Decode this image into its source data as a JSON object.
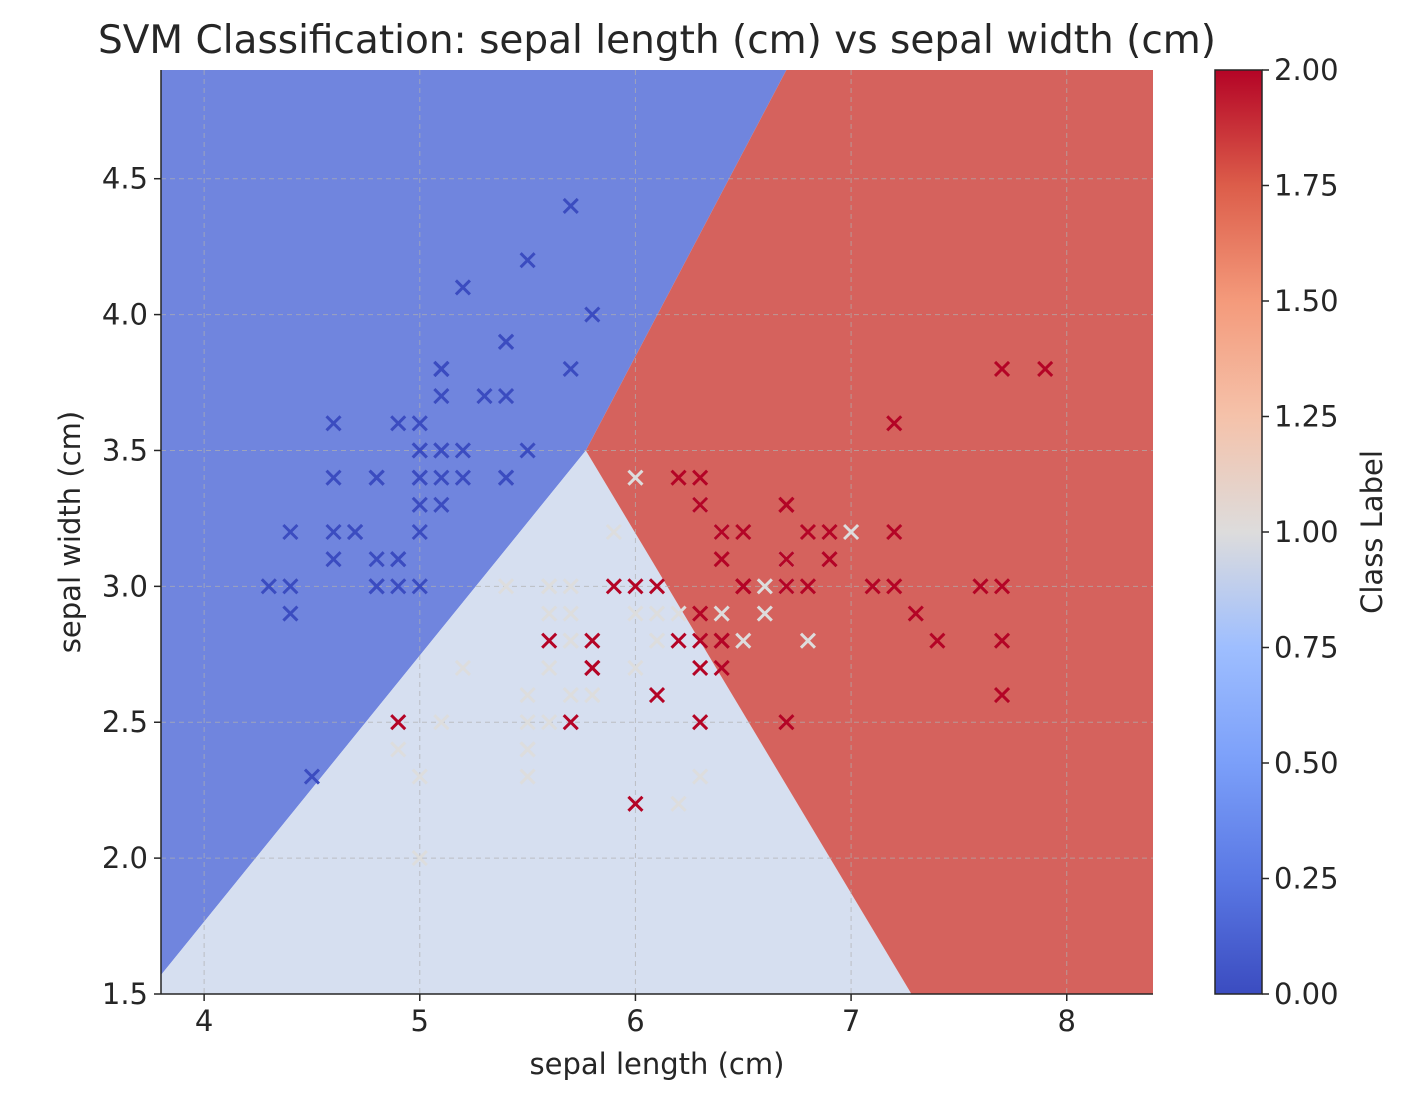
{
  "chart_data": {
    "type": "scatter",
    "title": "SVM Classification: sepal length (cm) vs sepal width (cm)",
    "xlabel": "sepal length (cm)",
    "ylabel": "sepal width (cm)",
    "xlim": [
      3.8,
      8.4
    ],
    "ylim": [
      1.5,
      4.9
    ],
    "xticks": [
      4,
      5,
      6,
      7,
      8
    ],
    "xtick_labels": [
      "4",
      "5",
      "6",
      "7",
      "8"
    ],
    "yticks": [
      1.5,
      2.0,
      2.5,
      3.0,
      3.5,
      4.0,
      4.5
    ],
    "ytick_labels": [
      "1.5",
      "2.0",
      "2.5",
      "3.0",
      "3.5",
      "4.0",
      "4.5"
    ],
    "grid": true,
    "marker": "x",
    "colormap": "coolwarm",
    "regions": [
      {
        "class": 0,
        "color": "#7085de",
        "polygon": [
          [
            3.8,
            1.57
          ],
          [
            5.77,
            3.5
          ],
          [
            6.7,
            4.9
          ],
          [
            3.8,
            4.9
          ]
        ]
      },
      {
        "class": 1,
        "color": "#d6dff0",
        "polygon": [
          [
            3.8,
            1.57
          ],
          [
            5.77,
            3.5
          ],
          [
            7.28,
            1.5
          ],
          [
            3.8,
            1.5
          ]
        ]
      },
      {
        "class": 2,
        "color": "#d5625d",
        "polygon": [
          [
            5.77,
            3.5
          ],
          [
            6.7,
            4.9
          ],
          [
            8.4,
            4.9
          ],
          [
            8.4,
            1.5
          ],
          [
            7.28,
            1.5
          ]
        ]
      }
    ],
    "class_colors": {
      "0": "#3b4cc0",
      "1": "#dddddd",
      "2": "#b40426"
    },
    "series": [
      {
        "class": 0,
        "points": [
          [
            5.1,
            3.5
          ],
          [
            4.9,
            3.0
          ],
          [
            4.7,
            3.2
          ],
          [
            4.6,
            3.1
          ],
          [
            5.0,
            3.6
          ],
          [
            5.4,
            3.9
          ],
          [
            4.6,
            3.4
          ],
          [
            5.0,
            3.4
          ],
          [
            4.4,
            2.9
          ],
          [
            4.9,
            3.1
          ],
          [
            5.4,
            3.7
          ],
          [
            4.8,
            3.4
          ],
          [
            4.8,
            3.0
          ],
          [
            4.3,
            3.0
          ],
          [
            5.8,
            4.0
          ],
          [
            5.7,
            4.4
          ],
          [
            5.4,
            3.9
          ],
          [
            5.1,
            3.5
          ],
          [
            5.7,
            3.8
          ],
          [
            5.1,
            3.8
          ],
          [
            5.4,
            3.4
          ],
          [
            5.1,
            3.7
          ],
          [
            4.6,
            3.6
          ],
          [
            5.1,
            3.3
          ],
          [
            4.8,
            3.4
          ],
          [
            5.0,
            3.0
          ],
          [
            5.0,
            3.4
          ],
          [
            5.2,
            3.5
          ],
          [
            5.2,
            3.4
          ],
          [
            4.7,
            3.2
          ],
          [
            4.8,
            3.1
          ],
          [
            5.4,
            3.4
          ],
          [
            5.2,
            4.1
          ],
          [
            5.5,
            4.2
          ],
          [
            4.9,
            3.1
          ],
          [
            5.0,
            3.2
          ],
          [
            5.5,
            3.5
          ],
          [
            4.9,
            3.6
          ],
          [
            4.4,
            3.0
          ],
          [
            5.1,
            3.4
          ],
          [
            5.0,
            3.5
          ],
          [
            4.5,
            2.3
          ],
          [
            4.4,
            3.2
          ],
          [
            5.0,
            3.5
          ],
          [
            5.1,
            3.8
          ],
          [
            4.8,
            3.0
          ],
          [
            5.1,
            3.8
          ],
          [
            4.6,
            3.2
          ],
          [
            5.3,
            3.7
          ],
          [
            5.0,
            3.3
          ]
        ]
      },
      {
        "class": 1,
        "points": [
          [
            7.0,
            3.2
          ],
          [
            6.4,
            3.2
          ],
          [
            6.9,
            3.1
          ],
          [
            5.5,
            2.3
          ],
          [
            6.5,
            2.8
          ],
          [
            5.7,
            2.8
          ],
          [
            6.3,
            3.3
          ],
          [
            4.9,
            2.4
          ],
          [
            6.6,
            2.9
          ],
          [
            5.2,
            2.7
          ],
          [
            5.0,
            2.0
          ],
          [
            5.9,
            3.0
          ],
          [
            6.0,
            2.2
          ],
          [
            6.1,
            2.9
          ],
          [
            5.6,
            2.9
          ],
          [
            6.7,
            3.1
          ],
          [
            5.6,
            3.0
          ],
          [
            5.8,
            2.7
          ],
          [
            6.2,
            2.2
          ],
          [
            5.6,
            2.5
          ],
          [
            5.9,
            3.2
          ],
          [
            6.1,
            2.8
          ],
          [
            6.3,
            2.5
          ],
          [
            6.1,
            2.8
          ],
          [
            6.4,
            2.9
          ],
          [
            6.6,
            3.0
          ],
          [
            6.8,
            2.8
          ],
          [
            6.7,
            3.0
          ],
          [
            6.0,
            2.9
          ],
          [
            5.7,
            2.6
          ],
          [
            5.5,
            2.4
          ],
          [
            5.5,
            2.4
          ],
          [
            5.8,
            2.7
          ],
          [
            6.0,
            2.7
          ],
          [
            5.4,
            3.0
          ],
          [
            6.0,
            3.4
          ],
          [
            6.7,
            3.1
          ],
          [
            6.3,
            2.3
          ],
          [
            5.6,
            3.0
          ],
          [
            5.5,
            2.5
          ],
          [
            5.5,
            2.6
          ],
          [
            6.1,
            3.0
          ],
          [
            5.8,
            2.6
          ],
          [
            5.0,
            2.3
          ],
          [
            5.6,
            2.7
          ],
          [
            5.7,
            3.0
          ],
          [
            5.7,
            2.9
          ],
          [
            6.2,
            2.9
          ],
          [
            5.1,
            2.5
          ],
          [
            5.7,
            2.8
          ]
        ]
      },
      {
        "class": 2,
        "points": [
          [
            6.3,
            3.3
          ],
          [
            5.8,
            2.7
          ],
          [
            7.1,
            3.0
          ],
          [
            6.3,
            2.9
          ],
          [
            6.5,
            3.0
          ],
          [
            7.6,
            3.0
          ],
          [
            4.9,
            2.5
          ],
          [
            7.3,
            2.9
          ],
          [
            6.7,
            2.5
          ],
          [
            7.2,
            3.6
          ],
          [
            6.5,
            3.2
          ],
          [
            6.4,
            2.7
          ],
          [
            6.8,
            3.0
          ],
          [
            5.7,
            2.5
          ],
          [
            5.8,
            2.8
          ],
          [
            6.4,
            3.2
          ],
          [
            6.5,
            3.0
          ],
          [
            7.7,
            3.8
          ],
          [
            7.7,
            2.6
          ],
          [
            6.0,
            2.2
          ],
          [
            6.9,
            3.2
          ],
          [
            5.6,
            2.8
          ],
          [
            7.7,
            2.8
          ],
          [
            6.3,
            2.7
          ],
          [
            6.7,
            3.3
          ],
          [
            7.2,
            3.2
          ],
          [
            6.2,
            2.8
          ],
          [
            6.1,
            3.0
          ],
          [
            6.4,
            2.8
          ],
          [
            7.2,
            3.0
          ],
          [
            7.4,
            2.8
          ],
          [
            7.9,
            3.8
          ],
          [
            6.4,
            2.8
          ],
          [
            6.3,
            2.8
          ],
          [
            6.1,
            2.6
          ],
          [
            7.7,
            3.0
          ],
          [
            6.3,
            3.4
          ],
          [
            6.4,
            3.1
          ],
          [
            6.0,
            3.0
          ],
          [
            6.9,
            3.1
          ],
          [
            6.7,
            3.1
          ],
          [
            6.9,
            3.1
          ],
          [
            5.8,
            2.7
          ],
          [
            6.8,
            3.2
          ],
          [
            6.7,
            3.3
          ],
          [
            6.7,
            3.0
          ],
          [
            6.3,
            2.5
          ],
          [
            6.5,
            3.0
          ],
          [
            6.2,
            3.4
          ],
          [
            5.9,
            3.0
          ]
        ]
      }
    ],
    "colorbar": {
      "label": "Class Label",
      "range": [
        0,
        2
      ],
      "ticks": [
        0,
        0.25,
        0.5,
        0.75,
        1.0,
        1.25,
        1.5,
        1.75,
        2.0
      ],
      "tick_labels": [
        "0.00",
        "0.25",
        "0.50",
        "0.75",
        "1.00",
        "1.25",
        "1.50",
        "1.75",
        "2.00"
      ]
    }
  }
}
